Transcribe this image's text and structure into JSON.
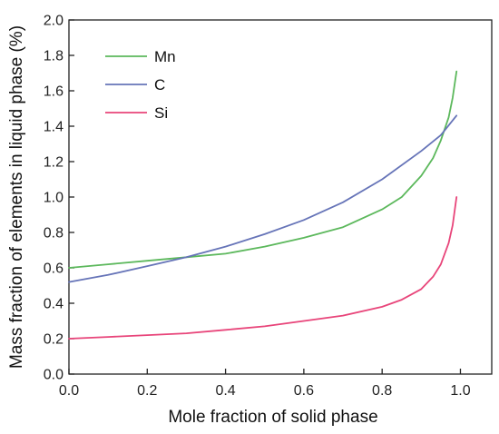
{
  "chart_data": {
    "type": "line",
    "title": "",
    "xlabel": "Mole fraction of solid phase",
    "ylabel": "Mass fraction of elements in liquid phase (%)",
    "xlim": [
      0.0,
      1.08
    ],
    "ylim": [
      0.0,
      2.0
    ],
    "x_ticks": [
      0.0,
      0.2,
      0.4,
      0.6,
      0.8,
      1.0
    ],
    "y_ticks": [
      0.0,
      0.2,
      0.4,
      0.6,
      0.8,
      1.0,
      1.2,
      1.4,
      1.6,
      1.8,
      2.0
    ],
    "x_tick_labels": [
      "0.0",
      "0.2",
      "0.4",
      "0.6",
      "0.8",
      "1.0"
    ],
    "y_tick_labels": [
      "0.0",
      "0.2",
      "0.4",
      "0.6",
      "0.8",
      "1.0",
      "1.2",
      "1.4",
      "1.6",
      "1.8",
      "2.0"
    ],
    "grid": false,
    "legend_position": "top-left",
    "series": [
      {
        "name": "Mn",
        "color": "#5cb85c",
        "x": [
          0.0,
          0.1,
          0.2,
          0.3,
          0.4,
          0.5,
          0.6,
          0.7,
          0.8,
          0.85,
          0.9,
          0.93,
          0.95,
          0.97,
          0.98,
          0.99
        ],
        "y": [
          0.6,
          0.62,
          0.64,
          0.66,
          0.68,
          0.72,
          0.77,
          0.83,
          0.93,
          1.0,
          1.12,
          1.22,
          1.32,
          1.45,
          1.56,
          1.71
        ]
      },
      {
        "name": "C",
        "color": "#6674b8",
        "x": [
          0.0,
          0.1,
          0.2,
          0.3,
          0.4,
          0.5,
          0.6,
          0.7,
          0.8,
          0.9,
          0.95,
          0.99
        ],
        "y": [
          0.52,
          0.56,
          0.61,
          0.66,
          0.72,
          0.79,
          0.87,
          0.97,
          1.1,
          1.26,
          1.35,
          1.46
        ]
      },
      {
        "name": "Si",
        "color": "#e8457a",
        "x": [
          0.0,
          0.1,
          0.2,
          0.3,
          0.4,
          0.5,
          0.6,
          0.7,
          0.8,
          0.85,
          0.9,
          0.93,
          0.95,
          0.97,
          0.98,
          0.99
        ],
        "y": [
          0.2,
          0.21,
          0.22,
          0.23,
          0.25,
          0.27,
          0.3,
          0.33,
          0.38,
          0.42,
          0.48,
          0.55,
          0.62,
          0.74,
          0.84,
          1.0
        ]
      }
    ]
  }
}
